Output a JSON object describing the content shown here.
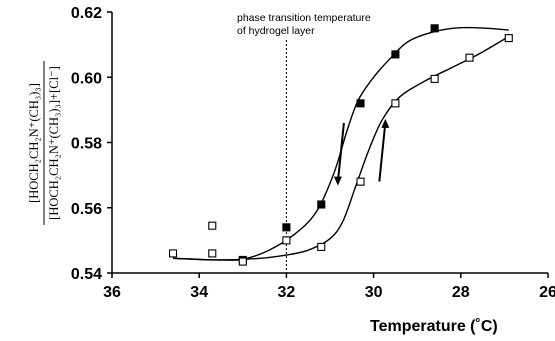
{
  "chart_data": {
    "type": "scatter",
    "xlabel": "Temperature (˚C)",
    "ylabel_numerator": "[HOCH₂CH₂N⁺(CH₃)₃]",
    "ylabel_denominator": "[HOCH₂CH₂N⁺(CH₃)₃]+[Cl⁻]",
    "xlim": [
      36,
      26
    ],
    "ylim": [
      0.54,
      0.62
    ],
    "x_ticks": [
      "36",
      "34",
      "32",
      "30",
      "28",
      "26"
    ],
    "y_ticks": [
      "0.54",
      "0.56",
      "0.58",
      "0.60",
      "0.62"
    ],
    "annotation_line1": "phase transition temperature",
    "annotation_line2": "of hydrogel layer",
    "transition_temperature": 32,
    "series": [
      {
        "marker": "filled-square",
        "points": [
          [
            33.0,
            0.544
          ],
          [
            32.0,
            0.554
          ],
          [
            31.2,
            0.561
          ],
          [
            30.3,
            0.592
          ],
          [
            29.5,
            0.607
          ],
          [
            28.6,
            0.615
          ]
        ],
        "curve": [
          [
            34.6,
            0.5445
          ],
          [
            33.6,
            0.544
          ],
          [
            33.0,
            0.5442
          ],
          [
            32.4,
            0.547
          ],
          [
            31.8,
            0.552
          ],
          [
            31.3,
            0.559
          ],
          [
            30.9,
            0.571
          ],
          [
            30.6,
            0.584
          ],
          [
            30.35,
            0.593
          ],
          [
            30.0,
            0.6
          ],
          [
            29.6,
            0.606
          ],
          [
            29.2,
            0.611
          ],
          [
            28.6,
            0.614
          ],
          [
            28.0,
            0.6152
          ],
          [
            27.4,
            0.615
          ],
          [
            26.9,
            0.6145
          ]
        ]
      },
      {
        "marker": "open-square",
        "points": [
          [
            34.6,
            0.546
          ],
          [
            33.7,
            0.5545
          ],
          [
            33.7,
            0.546
          ],
          [
            33.0,
            0.5435
          ],
          [
            32.0,
            0.55
          ],
          [
            31.2,
            0.548
          ],
          [
            30.3,
            0.568
          ],
          [
            29.5,
            0.592
          ],
          [
            28.6,
            0.5995
          ],
          [
            27.8,
            0.606
          ],
          [
            26.9,
            0.612
          ]
        ],
        "curve": [
          [
            34.6,
            0.5445
          ],
          [
            33.6,
            0.544
          ],
          [
            32.6,
            0.5445
          ],
          [
            32.0,
            0.5455
          ],
          [
            31.5,
            0.547
          ],
          [
            31.0,
            0.5505
          ],
          [
            30.7,
            0.556
          ],
          [
            30.4,
            0.567
          ],
          [
            30.1,
            0.578
          ],
          [
            29.8,
            0.587
          ],
          [
            29.4,
            0.594
          ],
          [
            28.8,
            0.599
          ],
          [
            28.2,
            0.603
          ],
          [
            27.6,
            0.607
          ],
          [
            26.9,
            0.6125
          ]
        ]
      }
    ],
    "arrows": [
      {
        "direction": "down",
        "x": 30.75,
        "y_from": 0.586,
        "y_to": 0.568
      },
      {
        "direction": "up",
        "x": 29.8,
        "y_from": 0.568,
        "y_to": 0.586
      }
    ]
  }
}
